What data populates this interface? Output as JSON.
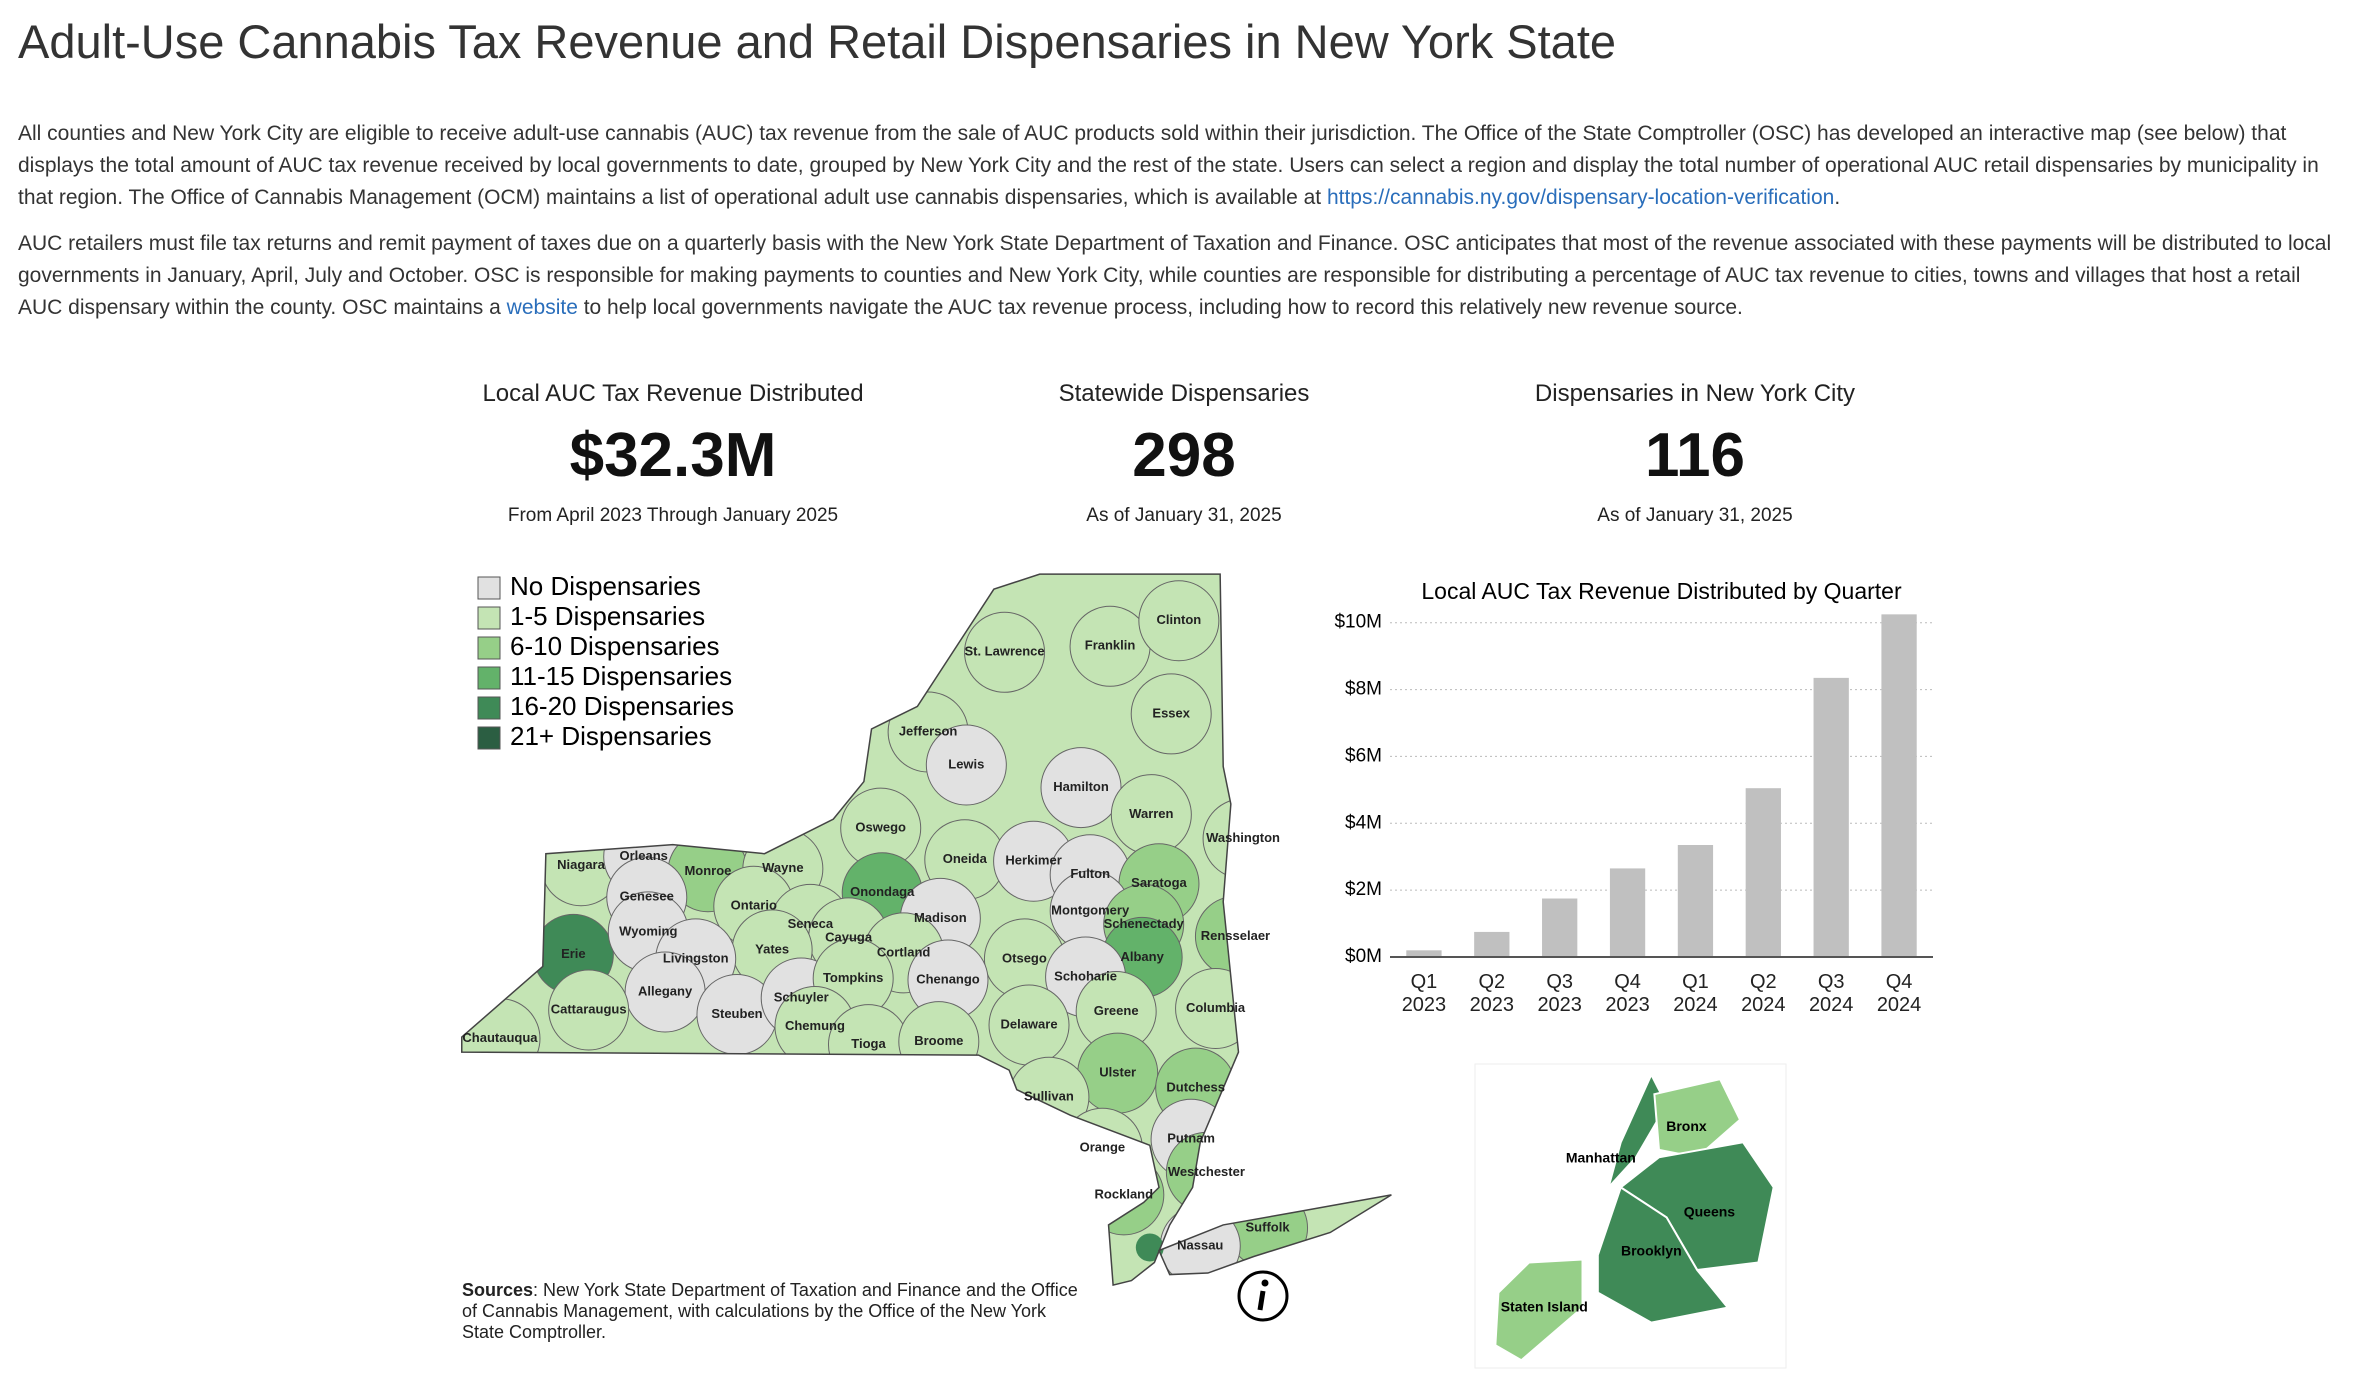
{
  "header": {
    "title": "Adult-Use Cannabis Tax Revenue and Retail Dispensaries in New York State"
  },
  "intro": [
    [
      {
        "text": "All counties and New York City are eligible to receive adult-use cannabis (AUC) tax revenue from the sale of AUC products sold within their jurisdiction. The Office of the State Comptroller (OSC) has developed an interactive map (see below) that displays the total amount of AUC tax revenue received by local governments to date, grouped by New York City and the rest of the state. Users can select a region and display the total number of operational AUC retail dispensaries by municipality in that region. The Office of Cannabis Management (OCM) maintains a list of operational adult use cannabis dispensaries, which is available at "
      },
      {
        "link": "https://cannabis.ny.gov/dispensary-location-verification"
      },
      {
        "text": "."
      }
    ],
    [
      {
        "text": "AUC retailers must file tax returns and remit payment of taxes due on a quarterly basis with the New York State Department of Taxation and Finance. OSC anticipates that most of the revenue associated with these payments will be distributed to local governments in January, April, July and October. OSC is responsible for making payments to counties and New York City, while counties are responsible for distributing a percentage of AUC tax revenue to cities, towns and villages that host a retail AUC dispensary within the county. OSC maintains a "
      },
      {
        "link": "website"
      },
      {
        "text": " to help local governments navigate the AUC tax revenue process, including how to record this relatively new revenue source."
      }
    ]
  ],
  "kpis": [
    {
      "label": "Local AUC Tax Revenue Distributed",
      "value": "$32.3M",
      "note": "From April 2023 Through January 2025"
    },
    {
      "label": "Statewide Dispensaries",
      "value": 298,
      "note": "As of January 31, 2025"
    },
    {
      "label": "Dispensaries in New York City",
      "value": 116,
      "note": "As of January 31, 2025"
    }
  ],
  "legend": [
    {
      "label": "No Dispensaries",
      "color": "#e1e1e1"
    },
    {
      "label": "1-5 Dispensaries",
      "color": "#c4e4b4"
    },
    {
      "label": "6-10 Dispensaries",
      "color": "#96cf88"
    },
    {
      "label": "11-15 Dispensaries",
      "color": "#63b26a"
    },
    {
      "label": "16-20 Dispensaries",
      "color": "#3f8a57"
    },
    {
      "label": "21+ Dispensaries",
      "color": "#2b5e42"
    }
  ],
  "counties": [
    "St. Lawrence",
    "Franklin",
    "Clinton",
    "Essex",
    "Jefferson",
    "Lewis",
    "Hamilton",
    "Warren",
    "Washington",
    "Oswego",
    "Niagara",
    "Orleans",
    "Monroe",
    "Wayne",
    "Genesee",
    "Ontario",
    "Onondaga",
    "Oneida",
    "Herkimer",
    "Fulton",
    "Saratoga",
    "Madison",
    "Montgomery",
    "Schenectady",
    "Erie",
    "Wyoming",
    "Seneca",
    "Cayuga",
    "Yates",
    "Livingston",
    "Cortland",
    "Otsego",
    "Albany",
    "Rensselaer",
    "Allegany",
    "Cattaraugus",
    "Steuben",
    "Schuyler",
    "Tompkins",
    "Chenango",
    "Schoharie",
    "Chemung",
    "Tioga",
    "Broome",
    "Delaware",
    "Greene",
    "Columbia",
    "Chautauqua",
    "Ulster",
    "Sullivan",
    "Dutchess",
    "Putnam",
    "Orange",
    "Westchester",
    "Rockland",
    "Suffolk",
    "Nassau"
  ],
  "nyc_boroughs": [
    "Manhattan",
    "Bronx",
    "Queens",
    "Brooklyn",
    "Staten Island"
  ],
  "sources": {
    "label": "Sources",
    "text": ": New York State Department of Taxation and Finance and the Office of Cannabis Management, with calculations by the Office of the New York State Comptroller."
  },
  "chart_data": {
    "type": "bar",
    "title": "Local AUC Tax Revenue Distributed by Quarter",
    "categories": [
      "Q1 2023",
      "Q2 2023",
      "Q3 2023",
      "Q4 2023",
      "Q1 2024",
      "Q2 2024",
      "Q3 2024",
      "Q4 2024"
    ],
    "values": [
      0.2,
      0.75,
      1.75,
      2.65,
      3.35,
      5.05,
      8.35,
      10.25
    ],
    "color": "#c0c0c0",
    "ylim": [
      0,
      10.5
    ],
    "yticks": [
      {
        "value": 0,
        "label": "$0M"
      },
      {
        "value": 2,
        "label": "$2M"
      },
      {
        "value": 4,
        "label": "$4M"
      },
      {
        "value": 6,
        "label": "$6M"
      },
      {
        "value": 8,
        "label": "$8M"
      },
      {
        "value": 10,
        "label": "$10M"
      }
    ],
    "grid": true
  }
}
